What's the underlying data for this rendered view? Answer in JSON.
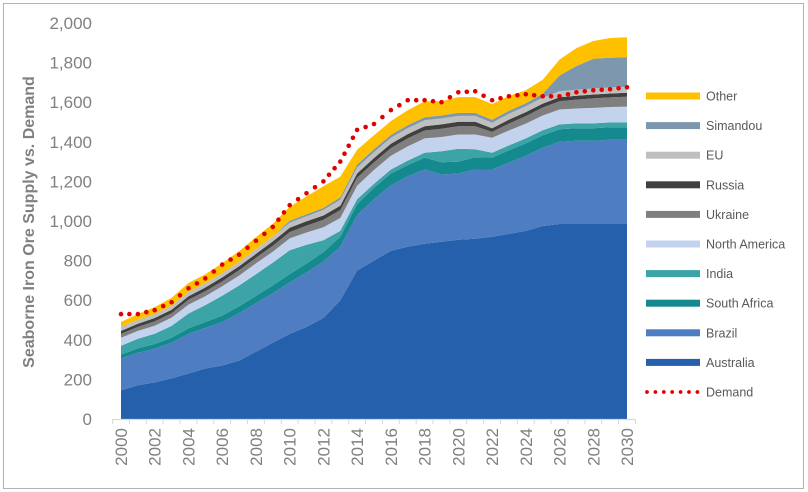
{
  "chart_data": {
    "type": "area",
    "stacked": true,
    "title": "",
    "xlabel": "",
    "ylabel": "Seaborne Iron Ore Supply vs. Demand",
    "ylim": [
      0,
      2000
    ],
    "xlim": [
      2000,
      2030
    ],
    "grid": false,
    "legend_position": "right",
    "y_ticks": [
      "0",
      "200",
      "400",
      "600",
      "800",
      "1,000",
      "1,200",
      "1,400",
      "1,600",
      "1,800",
      "2,000"
    ],
    "y_tick_values": [
      0,
      200,
      400,
      600,
      800,
      1000,
      1200,
      1400,
      1600,
      1800,
      2000
    ],
    "x_ticks": [
      "2000",
      "2002",
      "2004",
      "2006",
      "2008",
      "2010",
      "2012",
      "2014",
      "2016",
      "2018",
      "2020",
      "2022",
      "2024",
      "2026",
      "2028",
      "2030"
    ],
    "x": [
      2000,
      2001,
      2002,
      2003,
      2004,
      2005,
      2006,
      2007,
      2008,
      2009,
      2010,
      2011,
      2012,
      2013,
      2014,
      2015,
      2016,
      2017,
      2018,
      2019,
      2020,
      2021,
      2022,
      2023,
      2024,
      2025,
      2026,
      2027,
      2028,
      2029,
      2030
    ],
    "series": [
      {
        "name": "Australia",
        "color": "#2460AC",
        "values": [
          145,
          170,
          185,
          205,
          230,
          255,
          270,
          295,
          340,
          385,
          430,
          465,
          510,
          600,
          750,
          800,
          850,
          870,
          885,
          895,
          905,
          910,
          920,
          935,
          950,
          975,
          985,
          985,
          985,
          985,
          985
        ]
      },
      {
        "name": "Brazil",
        "color": "#4E7DC1",
        "values": [
          160,
          165,
          170,
          180,
          200,
          205,
          220,
          240,
          245,
          250,
          260,
          275,
          285,
          270,
          280,
          310,
          330,
          355,
          375,
          340,
          335,
          350,
          340,
          360,
          380,
          395,
          415,
          420,
          420,
          425,
          425
        ]
      },
      {
        "name": "South Africa",
        "color": "#148A8F",
        "values": [
          20,
          22,
          24,
          25,
          28,
          30,
          32,
          34,
          36,
          40,
          42,
          45,
          48,
          50,
          55,
          58,
          60,
          58,
          60,
          62,
          60,
          62,
          60,
          62,
          62,
          63,
          63,
          63,
          63,
          63,
          63
        ]
      },
      {
        "name": "India",
        "color": "#3CA3A6",
        "values": [
          45,
          48,
          52,
          60,
          75,
          85,
          100,
          105,
          110,
          115,
          120,
          95,
          60,
          30,
          25,
          20,
          20,
          22,
          25,
          55,
          65,
          40,
          25,
          25,
          25,
          25,
          25,
          25,
          25,
          25,
          25
        ]
      },
      {
        "name": "North America",
        "color": "#C3D3EE",
        "values": [
          40,
          40,
          40,
          42,
          45,
          45,
          48,
          50,
          55,
          55,
          60,
          62,
          65,
          65,
          68,
          70,
          70,
          72,
          72,
          72,
          72,
          75,
          75,
          75,
          75,
          75,
          75,
          75,
          78,
          78,
          80
        ]
      },
      {
        "name": "Ukraine",
        "color": "#7F7F7F",
        "values": [
          20,
          20,
          22,
          22,
          24,
          25,
          25,
          27,
          28,
          30,
          32,
          35,
          38,
          40,
          40,
          38,
          38,
          40,
          40,
          42,
          42,
          42,
          30,
          35,
          38,
          40,
          42,
          45,
          48,
          48,
          50
        ]
      },
      {
        "name": "Russia",
        "color": "#404040",
        "values": [
          15,
          16,
          17,
          18,
          18,
          19,
          20,
          20,
          20,
          22,
          22,
          22,
          22,
          22,
          22,
          22,
          22,
          22,
          22,
          22,
          22,
          22,
          18,
          20,
          20,
          20,
          20,
          20,
          20,
          20,
          20
        ]
      },
      {
        "name": "EU",
        "color": "#BFBFBF",
        "values": [
          20,
          20,
          20,
          20,
          22,
          22,
          22,
          22,
          24,
          24,
          25,
          25,
          28,
          30,
          30,
          30,
          30,
          30,
          30,
          30,
          30,
          30,
          28,
          30,
          30,
          30,
          30,
          30,
          30,
          30,
          30
        ]
      },
      {
        "name": "Simandou",
        "color": "#7D97AE",
        "values": [
          0,
          0,
          0,
          0,
          0,
          0,
          0,
          0,
          0,
          0,
          10,
          10,
          10,
          12,
          15,
          15,
          15,
          15,
          15,
          15,
          15,
          15,
          15,
          15,
          15,
          20,
          80,
          120,
          150,
          150,
          150
        ]
      },
      {
        "name": "Other",
        "color": "#FFC000",
        "values": [
          25,
          30,
          35,
          40,
          45,
          45,
          50,
          55,
          60,
          65,
          70,
          90,
          110,
          105,
          75,
          70,
          70,
          75,
          80,
          72,
          80,
          80,
          80,
          75,
          65,
          70,
          80,
          90,
          90,
          100,
          100
        ]
      }
    ],
    "demand": {
      "name": "Demand",
      "color": "#E00000",
      "style": "dotted",
      "values": [
        530,
        530,
        550,
        590,
        660,
        710,
        780,
        830,
        900,
        970,
        1080,
        1140,
        1200,
        1300,
        1460,
        1490,
        1560,
        1610,
        1610,
        1600,
        1650,
        1655,
        1610,
        1630,
        1640,
        1630,
        1630,
        1650,
        1660,
        1665,
        1675
      ]
    },
    "legend_order": [
      "Other",
      "Simandou",
      "EU",
      "Russia",
      "Ukraine",
      "North America",
      "India",
      "South Africa",
      "Brazil",
      "Australia",
      "Demand"
    ]
  }
}
